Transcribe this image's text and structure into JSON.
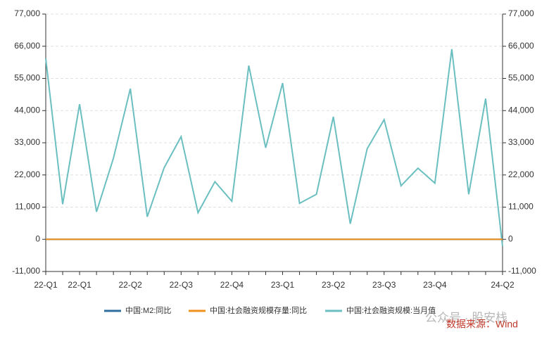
{
  "chart_data": {
    "type": "line",
    "categories": [
      "22-Q1",
      null,
      "22-Q1",
      null,
      null,
      "22-Q2",
      null,
      null,
      "22-Q3",
      null,
      null,
      "22-Q4",
      null,
      null,
      "23-Q1",
      null,
      null,
      "23-Q2",
      null,
      null,
      "23-Q3",
      null,
      null,
      "23-Q4",
      null,
      null,
      null,
      "24-Q2"
    ],
    "series": [
      {
        "name": "中国:M2:同比",
        "color": "#2e6f9e",
        "axis": "y",
        "values": [
          9.8,
          9.2,
          9.7,
          10.5,
          11.1,
          11.4,
          12,
          12.2,
          12.1,
          11.8,
          12.4,
          11.8,
          12.6,
          12.9,
          12.7,
          12.4,
          11.6,
          11.3,
          10.7,
          10.6,
          10.3,
          10.3,
          10,
          9.7,
          8.7,
          8.7,
          8.3,
          7.2
        ]
      },
      {
        "name": "中国:社会融资规模存量:同比",
        "color": "#f0901e",
        "axis": "y",
        "values": [
          10.5,
          10.2,
          10.6,
          10.2,
          10.5,
          10.8,
          10.7,
          10.5,
          10.6,
          10.3,
          10,
          9.6,
          9.4,
          9.9,
          10,
          10,
          9.5,
          9,
          8.9,
          9,
          9,
          9.3,
          9.4,
          9.5,
          9.5,
          9,
          8.7,
          8.4
        ]
      },
      {
        "name": "中国:社会融资规模:当月值",
        "color": "#6bbfc0",
        "axis": "y2",
        "values": [
          61800,
          12000,
          46200,
          9400,
          27700,
          51500,
          7700,
          24500,
          35100,
          9100,
          19700,
          13000,
          59400,
          31300,
          53400,
          12300,
          15400,
          41900,
          5300,
          31000,
          40900,
          18300,
          24300,
          19200,
          65000,
          15400,
          48100,
          -2400
        ]
      }
    ],
    "ylim": [
      -11000,
      77000
    ],
    "yticks": [
      {
        "value": -11000,
        "label": "-11,000"
      },
      0,
      {
        "value": 11000,
        "label": "11,000"
      },
      {
        "value": 22000,
        "label": "22,000"
      },
      {
        "value": 33000,
        "label": "33,000"
      },
      {
        "value": 44000,
        "label": "44,000"
      },
      {
        "value": 55000,
        "label": "55,000"
      },
      {
        "value": 66000,
        "label": "66,000"
      },
      {
        "value": 77000,
        "label": "77,000"
      }
    ],
    "y2lim": [
      -11000,
      77000
    ],
    "y2ticks": [
      {
        "value": -11000,
        "label": "-11,000"
      },
      0,
      {
        "value": 11000,
        "label": "11,000"
      },
      {
        "value": 22000,
        "label": "22,000"
      },
      {
        "value": 33000,
        "label": "33,000"
      },
      {
        "value": 44000,
        "label": "44,000"
      },
      {
        "value": 55000,
        "label": "55,000"
      },
      {
        "value": 66000,
        "label": "66,000"
      },
      {
        "value": 77000,
        "label": "77,000"
      }
    ],
    "grid": true,
    "legend": "bottom",
    "annotations": [
      "公众号 · 股安栈",
      "数据来源：Wind"
    ]
  }
}
